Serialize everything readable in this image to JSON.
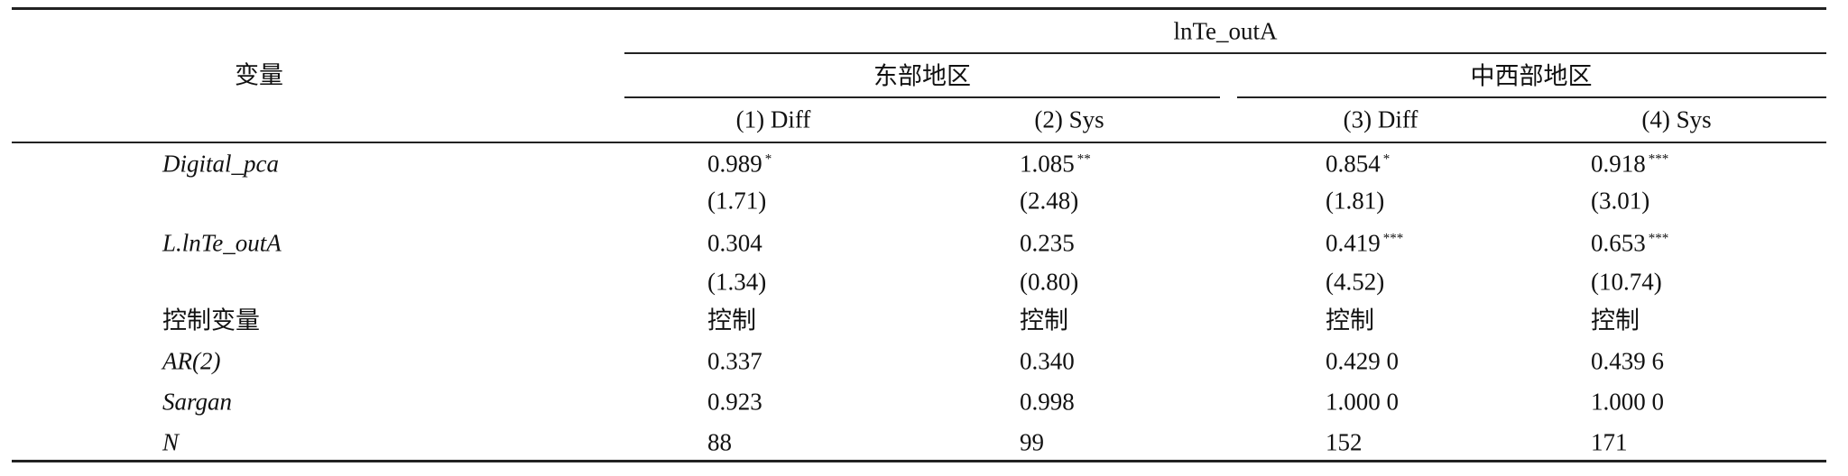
{
  "table": {
    "row_header": "变量",
    "top_header": "lnTe_outA",
    "groups": [
      "东部地区",
      "中西部地区"
    ],
    "columns": [
      "(1) Diff",
      "(2) Sys",
      "(3) Diff",
      "(4) Sys"
    ],
    "rows": [
      {
        "label": "Digital_pca",
        "italic": true,
        "cells": [
          {
            "text": "0.989",
            "stars": "*"
          },
          {
            "text": "1.085",
            "stars": "**"
          },
          {
            "text": "0.854",
            "stars": "*"
          },
          {
            "text": "0.918",
            "stars": "***"
          }
        ]
      },
      {
        "label": null,
        "italic": false,
        "cells": [
          {
            "text": "(1.71)"
          },
          {
            "text": "(2.48)"
          },
          {
            "text": "(1.81)"
          },
          {
            "text": "(3.01)"
          }
        ]
      },
      {
        "label": "L.lnTe_outA",
        "italic": true,
        "cells": [
          {
            "text": "0.304"
          },
          {
            "text": "0.235"
          },
          {
            "text": "0.419",
            "stars": "***"
          },
          {
            "text": "0.653",
            "stars": "***"
          }
        ]
      },
      {
        "label": null,
        "italic": false,
        "cells": [
          {
            "text": "(1.34)"
          },
          {
            "text": "(0.80)"
          },
          {
            "text": "(4.52)"
          },
          {
            "text": "(10.74)"
          }
        ]
      },
      {
        "label": "控制变量",
        "italic": false,
        "cells": [
          {
            "text": "控制"
          },
          {
            "text": "控制"
          },
          {
            "text": "控制"
          },
          {
            "text": "控制"
          }
        ]
      },
      {
        "label": "AR(2)",
        "italic": true,
        "cells": [
          {
            "text": "0.337"
          },
          {
            "text": "0.340"
          },
          {
            "text": "0.429 0"
          },
          {
            "text": "0.439 6"
          }
        ]
      },
      {
        "label": "Sargan",
        "italic": true,
        "cells": [
          {
            "text": "0.923"
          },
          {
            "text": "0.998"
          },
          {
            "text": "1.000 0"
          },
          {
            "text": "1.000 0"
          }
        ]
      },
      {
        "label": "N",
        "italic": true,
        "cells": [
          {
            "text": "88"
          },
          {
            "text": "99"
          },
          {
            "text": "152"
          },
          {
            "text": "171"
          }
        ]
      }
    ]
  }
}
